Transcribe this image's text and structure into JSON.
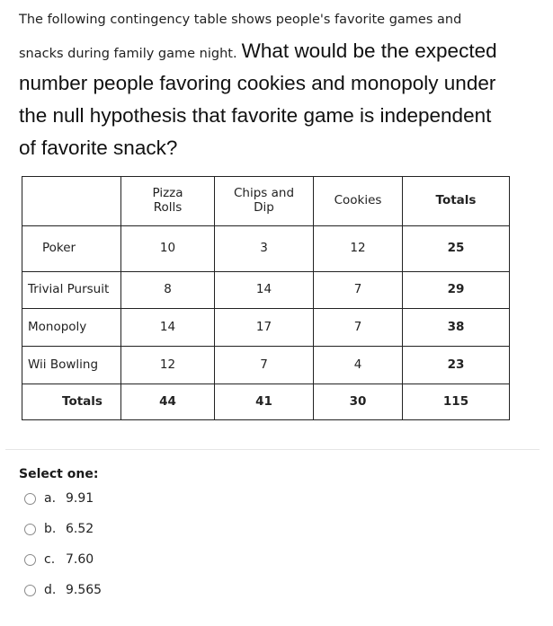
{
  "question": {
    "line1": "The following contingency table shows people's favorite games and",
    "line2_small": "snacks during family game night.",
    "line2_big": "What would be the expected",
    "line3": "number people favoring cookies and monopoly under",
    "line4": "the null hypothesis that favorite game is independent",
    "line5": "of favorite snack?"
  },
  "table": {
    "headers": [
      "",
      "Pizza Rolls",
      "Chips and Dip",
      "Cookies",
      "Totals"
    ],
    "rows": [
      {
        "label": "Poker",
        "cells": [
          "10",
          "3",
          "12",
          "25"
        ]
      },
      {
        "label": "Trivial Pursuit",
        "cells": [
          "8",
          "14",
          "7",
          "29"
        ]
      },
      {
        "label": "Monopoly",
        "cells": [
          "14",
          "17",
          "7",
          "38"
        ]
      },
      {
        "label": "Wii Bowling",
        "cells": [
          "12",
          "7",
          "4",
          "23"
        ]
      },
      {
        "label": "Totals",
        "cells": [
          "44",
          "41",
          "30",
          "115"
        ]
      }
    ]
  },
  "answer": {
    "prompt": "Select one:",
    "options": [
      {
        "letter": "a.",
        "value": "9.91"
      },
      {
        "letter": "b.",
        "value": "6.52"
      },
      {
        "letter": "c.",
        "value": "7.60"
      },
      {
        "letter": "d.",
        "value": "9.565"
      }
    ]
  }
}
